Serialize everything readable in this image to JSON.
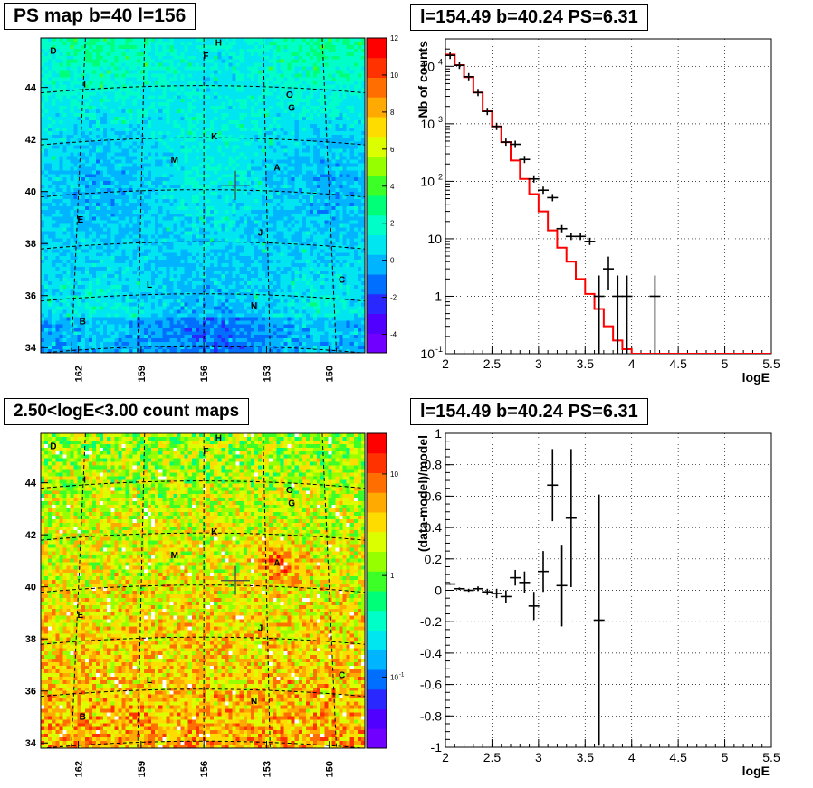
{
  "panels": {
    "tl_title": "PS map b=40 l=156",
    "tr_title": "l=154.49 b=40.24 PS=6.31",
    "bl_title": "2.50<logE<3.00 count maps",
    "br_title": "l=154.49 b=40.24 PS=6.31"
  },
  "maps": {
    "x_ticks": [
      "162",
      "159",
      "156",
      "153",
      "150"
    ],
    "y_ticks": [
      "34",
      "36",
      "38",
      "40",
      "42",
      "44"
    ],
    "source_labels": [
      {
        "name": "D",
        "l": 163.2,
        "b": 45.3
      },
      {
        "name": "H",
        "l": 155.3,
        "b": 45.6
      },
      {
        "name": "F",
        "l": 155.9,
        "b": 45.1
      },
      {
        "name": "I",
        "l": 161.7,
        "b": 44.0
      },
      {
        "name": "O",
        "l": 151.9,
        "b": 43.6
      },
      {
        "name": "G",
        "l": 151.8,
        "b": 43.1
      },
      {
        "name": "K",
        "l": 155.5,
        "b": 42.0
      },
      {
        "name": "M",
        "l": 157.4,
        "b": 41.1
      },
      {
        "name": "A",
        "l": 152.5,
        "b": 40.8
      },
      {
        "name": "E",
        "l": 161.9,
        "b": 38.8
      },
      {
        "name": "J",
        "l": 153.3,
        "b": 38.3
      },
      {
        "name": "L",
        "l": 158.6,
        "b": 36.3
      },
      {
        "name": "C",
        "l": 149.4,
        "b": 36.5
      },
      {
        "name": "N",
        "l": 153.6,
        "b": 35.5
      },
      {
        "name": "B",
        "l": 161.8,
        "b": 34.9
      }
    ],
    "ps_colorbar": {
      "ticks": [
        "-4",
        "-2",
        "0",
        "2",
        "4",
        "6",
        "8",
        "10",
        "12"
      ],
      "min": -5,
      "max": 12
    },
    "count_colorbar": {
      "ticks": [
        "10",
        "1",
        "10-1"
      ],
      "tick_display": [
        "10",
        "1",
        "10"
      ],
      "min_log": -1.7,
      "max_log": 1.4
    }
  },
  "chart_data": [
    {
      "type": "line",
      "title": "l=154.49 b=40.24 PS=6.31",
      "xlabel": "logE",
      "ylabel": "Nb of counts",
      "xlim": [
        2,
        5.5
      ],
      "ylim": [
        0.1,
        30000
      ],
      "log_y": true,
      "x_ticks": [
        "2",
        "2.5",
        "3",
        "3.5",
        "4",
        "4.5",
        "5",
        "5.5"
      ],
      "y_ticks": [
        "10-1",
        "1",
        "10",
        "102",
        "103",
        "104"
      ],
      "grid": true,
      "series": [
        {
          "kind": "step",
          "color": "#ff0000",
          "edges": [
            2,
            2.1,
            2.2,
            2.3,
            2.4,
            2.5,
            2.6,
            2.7,
            2.8,
            2.9,
            3.0,
            3.1,
            3.2,
            3.3,
            3.4,
            3.5,
            3.6,
            3.7,
            3.8,
            3.9,
            4.0,
            5.5
          ],
          "values": [
            16000,
            10500,
            6500,
            3500,
            1650,
            900,
            480,
            230,
            110,
            60,
            30,
            14,
            7,
            4,
            2,
            1.1,
            0.6,
            0.3,
            0.17,
            0.12,
            0.1
          ]
        },
        {
          "kind": "points",
          "color": "#000000",
          "x": [
            2.05,
            2.15,
            2.25,
            2.35,
            2.45,
            2.55,
            2.65,
            2.75,
            2.85,
            2.95,
            3.05,
            3.15,
            3.25,
            3.35,
            3.45,
            3.55,
            3.65,
            3.75,
            3.85,
            3.95,
            4.25
          ],
          "y": [
            15500,
            10400,
            6600,
            3500,
            1640,
            900,
            480,
            440,
            240,
            110,
            70,
            52,
            15,
            11,
            11,
            9,
            1,
            3,
            1,
            1,
            1
          ],
          "err_lo": [
            0,
            0,
            0,
            0,
            0,
            0,
            0,
            0,
            0,
            0,
            0,
            0,
            0,
            0,
            0,
            0,
            0.95,
            1.7,
            0.95,
            0.95,
            0.95
          ],
          "err_hi": [
            0,
            0,
            0,
            0,
            0,
            0,
            0,
            0,
            0,
            0,
            0,
            0,
            0,
            0,
            0,
            0,
            1.3,
            1.9,
            1.3,
            1.3,
            1.3
          ]
        }
      ]
    },
    {
      "type": "scatter",
      "title": "l=154.49 b=40.24 PS=6.31",
      "xlabel": "logE",
      "ylabel": "(data-model)/model",
      "xlim": [
        2,
        5.5
      ],
      "ylim": [
        -1,
        1
      ],
      "x_ticks": [
        "2",
        "2.5",
        "3",
        "3.5",
        "4",
        "4.5",
        "5",
        "5.5"
      ],
      "y_ticks": [
        "-1",
        "-0.8",
        "-0.6",
        "-0.4",
        "-0.2",
        "0",
        "0.2",
        "0.4",
        "0.6",
        "0.8",
        "1"
      ],
      "grid": true,
      "series": [
        {
          "kind": "points",
          "color": "#000000",
          "x": [
            2.05,
            2.15,
            2.25,
            2.35,
            2.45,
            2.55,
            2.65,
            2.75,
            2.85,
            2.95,
            3.05,
            3.15,
            3.25,
            3.35,
            3.65
          ],
          "y": [
            0.04,
            0.01,
            0.0,
            0.01,
            -0.01,
            -0.02,
            -0.04,
            0.08,
            0.05,
            -0.1,
            0.12,
            0.67,
            0.03,
            0.46,
            -0.19
          ],
          "err": [
            0.005,
            0.008,
            0.01,
            0.015,
            0.02,
            0.03,
            0.04,
            0.05,
            0.07,
            0.09,
            0.13,
            0.23,
            0.26,
            0.44,
            0.8
          ]
        }
      ]
    }
  ]
}
